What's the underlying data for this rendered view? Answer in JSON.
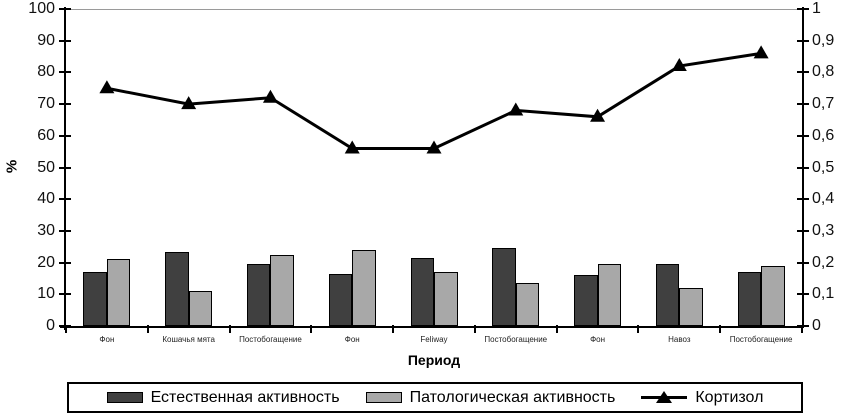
{
  "chart_data": {
    "type": "combo",
    "title": "",
    "categories": [
      "Фон",
      "Кошачья мята",
      "Постобогащение",
      "Фон",
      "Feliway",
      "Постобогащение",
      "Фон",
      "Навоз",
      "Постобогащение"
    ],
    "series": [
      {
        "name": "Естественная активность",
        "type": "bar",
        "axis": "left",
        "color": "#404040",
        "values": [
          17,
          23.5,
          19.5,
          16.5,
          21.5,
          24.5,
          16,
          19.5,
          17
        ]
      },
      {
        "name": "Патологическая активность",
        "type": "bar",
        "axis": "left",
        "color": "#a8a8a8",
        "values": [
          21,
          11,
          22.5,
          24,
          17,
          13.5,
          19.5,
          12,
          19
        ]
      },
      {
        "name": "Кортизол",
        "type": "line",
        "axis": "right",
        "color": "#000000",
        "marker": "triangle",
        "values": [
          0.75,
          0.7,
          0.72,
          0.56,
          0.56,
          0.68,
          0.66,
          0.82,
          0.86
        ]
      }
    ],
    "xlabel": "Период",
    "ylabel_left": "%",
    "left_axis": {
      "min": 0,
      "max": 100,
      "tick_labels": [
        "100",
        "90",
        "80",
        "70",
        "60",
        "50",
        "40",
        "30",
        "20",
        "10",
        "0"
      ]
    },
    "right_axis": {
      "min": 0,
      "max": 1,
      "tick_labels": [
        "1",
        "0,9",
        "0,8",
        "0,7",
        "0,6",
        "0,5",
        "0,4",
        "0,3",
        "0,2",
        "0,1",
        "0"
      ]
    },
    "legend_position": "bottom",
    "grid": "top-border-only",
    "colors": {
      "grid_top": "#9a9a9a",
      "background": "#ffffff"
    }
  }
}
